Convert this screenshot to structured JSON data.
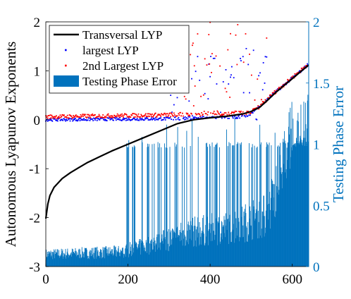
{
  "chart_data": {
    "type": "line",
    "x_ticks": [
      0,
      200,
      400,
      600
    ],
    "xlim": [
      0,
      640
    ],
    "left_axis": {
      "label": "Autonomous Lyapunov Exponents",
      "ylim": [
        -3,
        2
      ],
      "ticks": [
        -3,
        -2,
        -1,
        0,
        1,
        2
      ],
      "color": "#000000"
    },
    "right_axis": {
      "label": "Testing Phase Error",
      "ylim": [
        0,
        2
      ],
      "ticks": [
        0,
        0.5,
        1,
        1.5,
        2
      ],
      "tick_labels": [
        "0",
        "0.5",
        "1",
        "1.5",
        "2"
      ],
      "color": "#0072BD"
    },
    "legend": {
      "placement": "top-left",
      "entries": [
        "Transversal LYP",
        "largest LYP",
        "2nd Largest LYP",
        "Testing Phase Error"
      ]
    },
    "series": [
      {
        "name": "Transversal LYP",
        "kind": "line",
        "axis": "left",
        "color": "#000000",
        "x": [
          0,
          5,
          10,
          20,
          40,
          60,
          80,
          100,
          130,
          160,
          200,
          240,
          280,
          320,
          360,
          400,
          440,
          480,
          500,
          520,
          540,
          560,
          580,
          600,
          620,
          640
        ],
        "y": [
          -2.02,
          -1.72,
          -1.55,
          -1.38,
          -1.2,
          -1.08,
          -0.98,
          -0.88,
          -0.76,
          -0.64,
          -0.5,
          -0.36,
          -0.22,
          -0.08,
          0.0,
          0.04,
          0.07,
          0.12,
          0.17,
          0.25,
          0.4,
          0.56,
          0.7,
          0.84,
          0.98,
          1.12
        ]
      },
      {
        "name": "largest LYP",
        "kind": "scatter",
        "axis": "left",
        "color": "#0000FF",
        "baseline": [
          [
            0,
            0.0
          ],
          [
            300,
            0.02
          ],
          [
            480,
            0.06
          ],
          [
            500,
            0.12
          ],
          [
            520,
            0.25
          ],
          [
            540,
            0.42
          ],
          [
            560,
            0.57
          ],
          [
            580,
            0.71
          ],
          [
            600,
            0.85
          ],
          [
            620,
            0.99
          ],
          [
            640,
            1.14
          ]
        ],
        "outlier_x_range": [
          300,
          540
        ],
        "outlier_y_range": [
          0.0,
          1.5
        ]
      },
      {
        "name": "2nd Largest LYP",
        "kind": "scatter",
        "axis": "left",
        "color": "#FF0000",
        "baseline": [
          [
            0,
            0.06
          ],
          [
            300,
            0.1
          ],
          [
            480,
            0.14
          ],
          [
            500,
            0.16
          ],
          [
            520,
            0.27
          ],
          [
            540,
            0.43
          ],
          [
            560,
            0.58
          ],
          [
            580,
            0.72
          ],
          [
            600,
            0.86
          ],
          [
            620,
            1.0
          ],
          [
            640,
            1.15
          ]
        ],
        "outlier_x_range": [
          300,
          540
        ],
        "outlier_y_range": [
          0.05,
          2.0
        ]
      },
      {
        "name": "Testing Phase Error",
        "kind": "bar",
        "axis": "right",
        "color": "#0072BD",
        "profile": [
          [
            0,
            0.1
          ],
          [
            180,
            0.12
          ],
          [
            260,
            0.18
          ],
          [
            350,
            0.28
          ],
          [
            450,
            0.32
          ],
          [
            540,
            0.42
          ],
          [
            570,
            0.7
          ],
          [
            600,
            0.95
          ],
          [
            640,
            1.0
          ]
        ],
        "plateau": 1.0,
        "spike_x_range": [
          190,
          640
        ],
        "spike_max": 1.25
      }
    ]
  }
}
